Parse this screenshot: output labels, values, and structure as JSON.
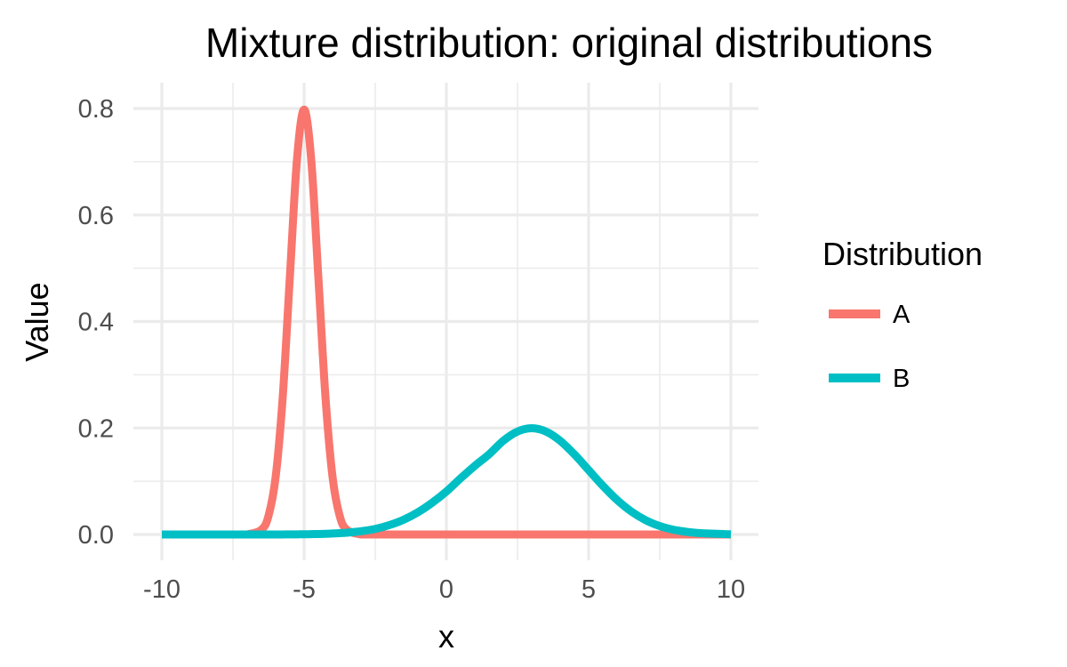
{
  "chart_data": {
    "type": "line",
    "title": "Mixture distribution: original distributions",
    "xlabel": "x",
    "ylabel": "Value",
    "xlim": [
      -10,
      10
    ],
    "ylim": [
      0,
      0.8
    ],
    "x_ticks": [
      -10,
      -5,
      0,
      5,
      10
    ],
    "x_tick_labels": [
      "-10",
      "-5",
      "0",
      "5",
      "10"
    ],
    "y_ticks": [
      0.0,
      0.2,
      0.4,
      0.6,
      0.8
    ],
    "y_tick_labels": [
      "0.0",
      "0.2",
      "0.4",
      "0.6",
      "0.8"
    ],
    "grid": true,
    "legend": {
      "title": "Distribution",
      "position": "right"
    },
    "x": [
      -10,
      -9,
      -8,
      -7.5,
      -7,
      -6.5,
      -6.25,
      -6,
      -5.75,
      -5.5,
      -5.25,
      -5,
      -4.75,
      -4.5,
      -4.25,
      -4,
      -3.75,
      -3.5,
      -3,
      -2.5,
      -2,
      -1.5,
      -1,
      -0.5,
      0,
      0.5,
      1,
      1.5,
      2,
      2.5,
      3,
      3.5,
      4,
      4.5,
      5,
      5.5,
      6,
      6.5,
      7,
      7.5,
      8,
      8.5,
      9,
      10
    ],
    "series": [
      {
        "name": "A",
        "color": "#f8766d",
        "values": [
          0,
          0,
          0,
          0,
          0.0001,
          0.0089,
          0.0352,
          0.108,
          0.259,
          0.4839,
          0.7041,
          0.7979,
          0.7041,
          0.4839,
          0.259,
          0.108,
          0.0352,
          0.0089,
          0.0001,
          0,
          0,
          0,
          0,
          0,
          0,
          0,
          0,
          0,
          0,
          0,
          0,
          0,
          0,
          0,
          0,
          0,
          0,
          0,
          0,
          0,
          0,
          0,
          0,
          0
        ]
      },
      {
        "name": "B",
        "color": "#00bfc4",
        "values": [
          0.0,
          0.0,
          0.0,
          0.0,
          0.0,
          0.0,
          0.0,
          0.0001,
          0.0001,
          0.0002,
          0.0003,
          0.0004,
          0.0006,
          0.0009,
          0.0013,
          0.0018,
          0.0025,
          0.0034,
          0.0061,
          0.0105,
          0.0177,
          0.0278,
          0.0417,
          0.0596,
          0.0807,
          0.1055,
          0.129,
          0.1505,
          0.176,
          0.1933,
          0.1995,
          0.1933,
          0.176,
          0.1505,
          0.121,
          0.0914,
          0.0648,
          0.0432,
          0.027,
          0.0159,
          0.0088,
          0.0046,
          0.0022,
          0.0004
        ]
      }
    ]
  }
}
